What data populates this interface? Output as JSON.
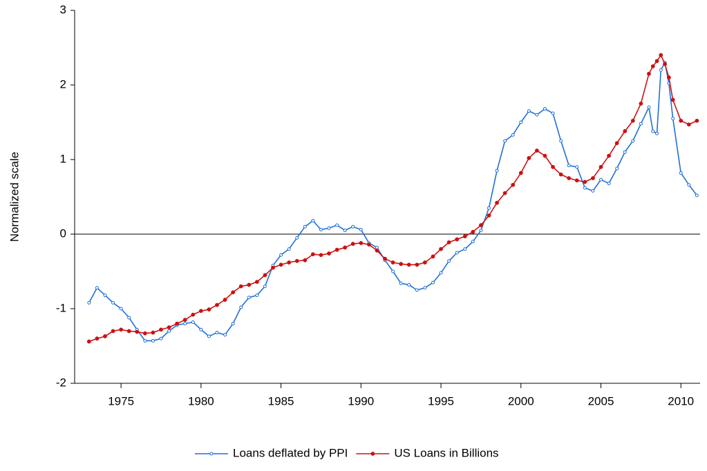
{
  "chart_data": {
    "type": "line",
    "y_label": "Normalized scale",
    "x": [
      1973,
      1973.5,
      1974,
      1974.5,
      1975,
      1975.5,
      1976,
      1976.5,
      1977,
      1977.5,
      1978,
      1978.5,
      1979,
      1979.5,
      1980,
      1980.5,
      1981,
      1981.5,
      1982,
      1982.5,
      1983,
      1983.5,
      1984,
      1984.5,
      1985,
      1985.5,
      1986,
      1986.5,
      1987,
      1987.5,
      1988,
      1988.5,
      1989,
      1989.5,
      1990,
      1990.5,
      1991,
      1991.5,
      1992,
      1992.5,
      1993,
      1993.5,
      1994,
      1994.5,
      1995,
      1995.5,
      1996,
      1996.5,
      1997,
      1997.5,
      1998,
      1998.5,
      1999,
      1999.5,
      2000,
      2000.5,
      2001,
      2001.5,
      2002,
      2002.5,
      2003,
      2003.5,
      2004,
      2004.5,
      2005,
      2005.5,
      2006,
      2006.5,
      2007,
      2007.5,
      2008,
      2008.25,
      2008.5,
      2008.75,
      2009,
      2009.25,
      2009.5,
      2010,
      2010.5,
      2011
    ],
    "series": [
      {
        "name": "Loans deflated by PPI",
        "color": "#1f6fd6",
        "marker": "open",
        "values": [
          -0.92,
          -0.72,
          -0.82,
          -0.92,
          -1.0,
          -1.12,
          -1.28,
          -1.43,
          -1.43,
          -1.4,
          -1.3,
          -1.22,
          -1.2,
          -1.18,
          -1.28,
          -1.37,
          -1.32,
          -1.35,
          -1.2,
          -0.98,
          -0.85,
          -0.82,
          -0.7,
          -0.42,
          -0.28,
          -0.2,
          -0.05,
          0.1,
          0.18,
          0.06,
          0.08,
          0.12,
          0.05,
          0.1,
          0.06,
          -0.12,
          -0.18,
          -0.35,
          -0.5,
          -0.66,
          -0.68,
          -0.75,
          -0.72,
          -0.65,
          -0.52,
          -0.36,
          -0.25,
          -0.2,
          -0.1,
          0.05,
          0.35,
          0.85,
          1.25,
          1.33,
          1.5,
          1.65,
          1.6,
          1.68,
          1.62,
          1.25,
          0.92,
          0.9,
          0.62,
          0.58,
          0.73,
          0.68,
          0.88,
          1.1,
          1.25,
          1.48,
          1.7,
          1.38,
          1.35,
          2.2,
          2.3,
          2.02,
          1.55,
          0.82,
          0.66,
          0.52
        ]
      },
      {
        "name": "US Loans in Billions",
        "color": "#cc1111",
        "marker": "filled",
        "values": [
          -1.44,
          -1.4,
          -1.37,
          -1.3,
          -1.28,
          -1.3,
          -1.31,
          -1.33,
          -1.32,
          -1.28,
          -1.25,
          -1.2,
          -1.15,
          -1.08,
          -1.03,
          -1.01,
          -0.95,
          -0.88,
          -0.78,
          -0.7,
          -0.68,
          -0.64,
          -0.55,
          -0.45,
          -0.41,
          -0.38,
          -0.36,
          -0.35,
          -0.27,
          -0.28,
          -0.26,
          -0.21,
          -0.18,
          -0.13,
          -0.12,
          -0.14,
          -0.22,
          -0.33,
          -0.38,
          -0.4,
          -0.41,
          -0.41,
          -0.38,
          -0.3,
          -0.2,
          -0.11,
          -0.07,
          -0.03,
          0.03,
          0.12,
          0.25,
          0.42,
          0.55,
          0.66,
          0.82,
          1.02,
          1.12,
          1.05,
          0.9,
          0.8,
          0.75,
          0.72,
          0.7,
          0.75,
          0.9,
          1.05,
          1.22,
          1.38,
          1.52,
          1.75,
          2.15,
          2.25,
          2.32,
          2.4,
          2.28,
          2.1,
          1.8,
          1.52,
          1.47,
          1.52
        ]
      }
    ],
    "xlim": [
      1972.1,
      2011.2
    ],
    "xticks": [
      1975,
      1980,
      1985,
      1990,
      1995,
      2000,
      2005,
      2010
    ],
    "ylim": [
      -2,
      3
    ],
    "yticks": [
      3,
      2,
      1,
      0,
      -1,
      -2
    ],
    "zero_line": true,
    "grid": false,
    "legend": "bottom"
  }
}
